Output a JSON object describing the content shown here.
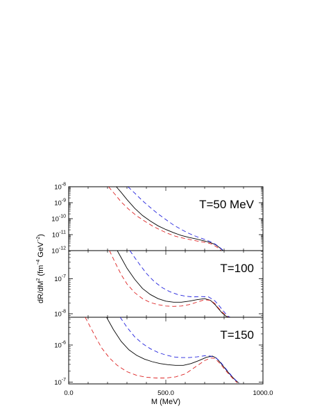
{
  "chart_data": {
    "type": "line",
    "xlabel": "M (MeV)",
    "ylabel_parts": {
      "a": "dR/dM",
      "a_sup": "2",
      "b": " (fm",
      "b_sup": "−4",
      "c": " GeV",
      "c_sup": "−2",
      "d": ")"
    },
    "xlim": [
      0,
      1000
    ],
    "x_ticks": [
      {
        "value": 0,
        "label": "0.0"
      },
      {
        "value": 500,
        "label": "500.0"
      },
      {
        "value": 1000,
        "label": "1000.0"
      }
    ],
    "y_scale": "log",
    "grid": false,
    "legend": "none",
    "series_styles": [
      {
        "color": "#000000",
        "dash": ""
      },
      {
        "color": "#2222dd",
        "dash": "6,4"
      },
      {
        "color": "#dd2222",
        "dash": "6,4"
      }
    ],
    "panels": [
      {
        "label": "T=50 MeV",
        "ylim": [
          -12,
          -8
        ],
        "y_ticks": [
          {
            "exp": -8,
            "base": "10",
            "sup": "-8"
          },
          {
            "exp": -9,
            "base": "10",
            "sup": "-9"
          },
          {
            "exp": -10,
            "base": "10",
            "sup": "-10"
          },
          {
            "exp": -11,
            "base": "10",
            "sup": "-11"
          },
          {
            "exp": -12,
            "base": "10",
            "sup": "-12"
          }
        ],
        "series": [
          {
            "x": [
              245,
              270,
              300,
              340,
              380,
              420,
              460,
              500,
              540,
              580,
              620,
              660,
              700,
              730,
              755,
              775,
              795,
              805,
              815
            ],
            "log10_y": [
              -8.0,
              -8.35,
              -8.8,
              -9.35,
              -9.8,
              -10.15,
              -10.45,
              -10.68,
              -10.88,
              -11.05,
              -11.18,
              -11.28,
              -11.4,
              -11.5,
              -11.62,
              -11.8,
              -12.0,
              -12.08,
              -12.12
            ]
          },
          {
            "x": [
              305,
              340,
              380,
              420,
              460,
              500,
              540,
              580,
              620,
              660,
              700,
              730,
              755,
              775,
              795,
              810,
              820
            ],
            "log10_y": [
              -8.0,
              -8.4,
              -8.88,
              -9.3,
              -9.7,
              -10.05,
              -10.4,
              -10.68,
              -10.93,
              -11.13,
              -11.3,
              -11.45,
              -11.6,
              -11.78,
              -11.98,
              -12.08,
              -12.12
            ]
          },
          {
            "x": [
              205,
              240,
              270,
              310,
              350,
              390,
              430,
              470,
              510,
              550,
              590,
              630,
              670,
              710,
              740,
              765,
              785,
              800,
              812
            ],
            "log10_y": [
              -8.0,
              -8.5,
              -8.95,
              -9.42,
              -9.82,
              -10.15,
              -10.45,
              -10.7,
              -10.92,
              -11.1,
              -11.22,
              -11.32,
              -11.42,
              -11.5,
              -11.6,
              -11.8,
              -12.0,
              -12.08,
              -12.12
            ]
          }
        ]
      },
      {
        "label": "T=100",
        "ylim": [
          -8.1,
          -6.2
        ],
        "y_ticks": [
          {
            "exp": -7,
            "base": "10",
            "sup": "-7"
          },
          {
            "exp": -8,
            "base": "10",
            "sup": "-8"
          }
        ],
        "series": [
          {
            "x": [
              250,
              275,
              300,
              340,
              380,
              420,
              460,
              500,
              540,
              580,
              620,
              660,
              700,
              730,
              755,
              770,
              790,
              810,
              825
            ],
            "log10_y": [
              -6.2,
              -6.45,
              -6.7,
              -7.02,
              -7.28,
              -7.45,
              -7.57,
              -7.64,
              -7.67,
              -7.67,
              -7.64,
              -7.6,
              -7.57,
              -7.62,
              -7.75,
              -7.85,
              -7.98,
              -8.07,
              -8.1
            ]
          },
          {
            "x": [
              315,
              340,
              370,
              400,
              440,
              480,
              520,
              560,
              600,
              640,
              680,
              720,
              750,
              770,
              790,
              805,
              820,
              832
            ],
            "log10_y": [
              -6.2,
              -6.4,
              -6.63,
              -6.85,
              -7.08,
              -7.25,
              -7.37,
              -7.45,
              -7.5,
              -7.52,
              -7.51,
              -7.52,
              -7.62,
              -7.74,
              -7.88,
              -7.98,
              -8.07,
              -8.1
            ]
          },
          {
            "x": [
              210,
              240,
              270,
              300,
              340,
              380,
              420,
              460,
              500,
              540,
              580,
              620,
              660,
              700,
              730,
              755,
              770,
              790,
              810,
              822
            ],
            "log10_y": [
              -6.2,
              -6.55,
              -6.88,
              -7.15,
              -7.4,
              -7.57,
              -7.68,
              -7.74,
              -7.78,
              -7.79,
              -7.78,
              -7.74,
              -7.67,
              -7.6,
              -7.62,
              -7.72,
              -7.83,
              -7.95,
              -8.05,
              -8.1
            ]
          }
        ]
      },
      {
        "label": "T=150",
        "ylim": [
          -7.05,
          -5.25
        ],
        "y_ticks": [
          {
            "exp": -6,
            "base": "10",
            "sup": "-6"
          },
          {
            "exp": -7,
            "base": "10",
            "sup": "-7"
          }
        ],
        "series": [
          {
            "x": [
              195,
              230,
              270,
              310,
              350,
              390,
              430,
              470,
              510,
              550,
              590,
              630,
              670,
              710,
              740,
              760,
              780,
              800,
              820,
              840,
              860,
              875
            ],
            "log10_y": [
              -5.25,
              -5.58,
              -5.9,
              -6.13,
              -6.28,
              -6.38,
              -6.45,
              -6.5,
              -6.53,
              -6.55,
              -6.55,
              -6.5,
              -6.42,
              -6.33,
              -6.3,
              -6.35,
              -6.47,
              -6.6,
              -6.73,
              -6.85,
              -6.96,
              -7.02
            ]
          },
          {
            "x": [
              265,
              300,
              340,
              380,
              420,
              460,
              500,
              540,
              580,
              620,
              660,
              700,
              730,
              755,
              775,
              795,
              815,
              840,
              860,
              880
            ],
            "log10_y": [
              -5.25,
              -5.52,
              -5.78,
              -5.96,
              -6.1,
              -6.2,
              -6.27,
              -6.32,
              -6.34,
              -6.34,
              -6.32,
              -6.29,
              -6.3,
              -6.34,
              -6.42,
              -6.55,
              -6.68,
              -6.84,
              -6.95,
              -7.02
            ]
          },
          {
            "x": [
              85,
              110,
              140,
              170,
              210,
              250,
              300,
              350,
              400,
              450,
              500,
              550,
              600,
              650,
              700,
              730,
              750,
              770,
              790,
              810,
              830,
              850,
              868
            ],
            "log10_y": [
              -5.25,
              -5.5,
              -5.8,
              -6.08,
              -6.35,
              -6.55,
              -6.72,
              -6.82,
              -6.87,
              -6.89,
              -6.89,
              -6.86,
              -6.78,
              -6.6,
              -6.42,
              -6.35,
              -6.36,
              -6.45,
              -6.57,
              -6.7,
              -6.82,
              -6.93,
              -7.02
            ]
          }
        ]
      }
    ]
  }
}
